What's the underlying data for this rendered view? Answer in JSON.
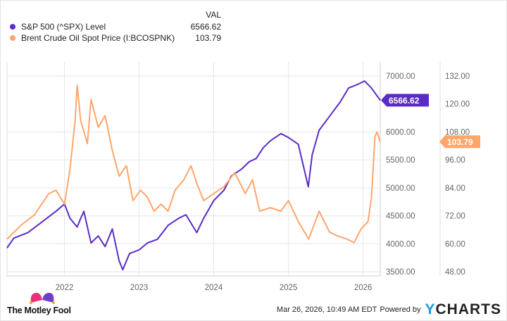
{
  "legend": {
    "value_header": "VAL",
    "items": [
      {
        "name": "S&P 500 (^SPX) Level",
        "value": "6566.62",
        "color": "#5b2bc7"
      },
      {
        "name": "Brent Crude Oil Spot Price (I:BCOSPNK)",
        "value": "103.79",
        "color": "#ffa66b"
      }
    ]
  },
  "chart_data": {
    "type": "line",
    "x_range": [
      "2021-03-26",
      "2026-03-26"
    ],
    "x_ticks": [
      "2022",
      "2023",
      "2024",
      "2025",
      "2026"
    ],
    "grid": true,
    "legend_position": "top-left",
    "axes": {
      "left": {
        "ylim": [
          3500,
          7000
        ],
        "ticks": [
          "3500.00",
          "4000.00",
          "4500.00",
          "5000.00",
          "5500.00",
          "6000.00",
          "7000.00"
        ],
        "tick_values": [
          3500,
          4000,
          4500,
          5000,
          5500,
          6000,
          7000
        ]
      },
      "right": {
        "ylim": [
          48,
          132
        ],
        "ticks": [
          "48.00",
          "60.00",
          "72.00",
          "84.00",
          "96.00",
          "108.00",
          "120.00",
          "132.00"
        ],
        "tick_values": [
          48,
          60,
          72,
          84,
          96,
          108,
          120,
          132
        ]
      }
    },
    "series": [
      {
        "name": "S&P 500 (^SPX) Level",
        "axis": "left",
        "color": "#5b2bc7",
        "last_label": "6566.62",
        "points": [
          [
            "2021-03-26",
            3925
          ],
          [
            "2021-04-28",
            4100
          ],
          [
            "2021-07-06",
            4200
          ],
          [
            "2021-09-13",
            4390
          ],
          [
            "2021-11-20",
            4580
          ],
          [
            "2022-01-01",
            4710
          ],
          [
            "2022-01-28",
            4455
          ],
          [
            "2022-03-04",
            4300
          ],
          [
            "2022-03-21",
            4450
          ],
          [
            "2022-04-06",
            4580
          ],
          [
            "2022-05-11",
            4015
          ],
          [
            "2022-06-15",
            4140
          ],
          [
            "2022-07-19",
            3950
          ],
          [
            "2022-08-23",
            4265
          ],
          [
            "2022-09-25",
            3700
          ],
          [
            "2022-10-13",
            3535
          ],
          [
            "2022-11-15",
            3825
          ],
          [
            "2023-01-01",
            3890
          ],
          [
            "2023-02-11",
            4015
          ],
          [
            "2023-04-01",
            4080
          ],
          [
            "2023-05-23",
            4330
          ],
          [
            "2023-07-14",
            4455
          ],
          [
            "2023-08-18",
            4520
          ],
          [
            "2023-10-10",
            4200
          ],
          [
            "2023-11-13",
            4455
          ],
          [
            "2024-01-01",
            4770
          ],
          [
            "2024-02-21",
            4960
          ],
          [
            "2024-03-27",
            5210
          ],
          [
            "2024-05-18",
            5340
          ],
          [
            "2024-06-22",
            5465
          ],
          [
            "2024-07-27",
            5525
          ],
          [
            "2024-08-30",
            5715
          ],
          [
            "2024-10-04",
            5840
          ],
          [
            "2024-11-25",
            5970
          ],
          [
            "2025-01-01",
            5900
          ],
          [
            "2025-02-18",
            5780
          ],
          [
            "2025-04-08",
            5020
          ],
          [
            "2025-04-27",
            5590
          ],
          [
            "2025-05-31",
            6030
          ],
          [
            "2025-07-21",
            6280
          ],
          [
            "2025-09-11",
            6535
          ],
          [
            "2025-10-22",
            6785
          ],
          [
            "2025-12-05",
            6850
          ],
          [
            "2026-01-08",
            6910
          ],
          [
            "2026-02-11",
            6785
          ],
          [
            "2026-03-26",
            6566.62
          ]
        ]
      },
      {
        "name": "Brent Crude Oil Spot Price (I:BCOSPNK)",
        "axis": "right",
        "color": "#ffa66b",
        "last_label": "103.79",
        "points": [
          [
            "2021-03-26",
            62
          ],
          [
            "2021-06-03",
            68
          ],
          [
            "2021-08-08",
            72.5
          ],
          [
            "2021-10-16",
            81.5
          ],
          [
            "2021-11-20",
            83
          ],
          [
            "2022-01-01",
            77
          ],
          [
            "2022-01-28",
            92
          ],
          [
            "2022-02-22",
            113
          ],
          [
            "2022-03-04",
            128
          ],
          [
            "2022-03-21",
            113
          ],
          [
            "2022-04-23",
            103
          ],
          [
            "2022-05-11",
            122
          ],
          [
            "2022-06-15",
            110
          ],
          [
            "2022-07-19",
            115
          ],
          [
            "2022-08-23",
            100
          ],
          [
            "2022-09-25",
            89
          ],
          [
            "2022-10-31",
            93.5
          ],
          [
            "2022-12-02",
            78.5
          ],
          [
            "2023-01-08",
            83
          ],
          [
            "2023-02-11",
            80
          ],
          [
            "2023-03-15",
            74
          ],
          [
            "2023-04-19",
            77
          ],
          [
            "2023-05-23",
            74
          ],
          [
            "2023-06-26",
            83
          ],
          [
            "2023-08-08",
            87.5
          ],
          [
            "2023-09-12",
            93.5
          ],
          [
            "2023-10-10",
            86
          ],
          [
            "2023-11-13",
            78.5
          ],
          [
            "2024-01-01",
            81.5
          ],
          [
            "2024-02-21",
            84.5
          ],
          [
            "2024-04-13",
            90.5
          ],
          [
            "2024-06-04",
            81.5
          ],
          [
            "2024-07-09",
            87.5
          ],
          [
            "2024-08-13",
            74
          ],
          [
            "2024-10-04",
            75.5
          ],
          [
            "2024-11-25",
            74
          ],
          [
            "2025-01-01",
            78.5
          ],
          [
            "2025-02-18",
            69.5
          ],
          [
            "2025-04-10",
            62
          ],
          [
            "2025-05-31",
            74
          ],
          [
            "2025-07-21",
            65
          ],
          [
            "2025-08-25",
            63.5
          ],
          [
            "2025-10-15",
            62
          ],
          [
            "2025-11-18",
            60.5
          ],
          [
            "2025-12-23",
            66.5
          ],
          [
            "2026-01-25",
            69.5
          ],
          [
            "2026-02-11",
            80
          ],
          [
            "2026-02-28",
            106
          ],
          [
            "2026-03-10",
            108
          ],
          [
            "2026-03-26",
            103.79
          ]
        ]
      }
    ]
  },
  "footer": {
    "brand": "The Motley Fool",
    "timestamp": "Mar 26, 2026, 10:49 AM EDT",
    "powered_by": "Powered by",
    "ycharts_y": "Y",
    "ycharts_rest": "CHARTS"
  }
}
